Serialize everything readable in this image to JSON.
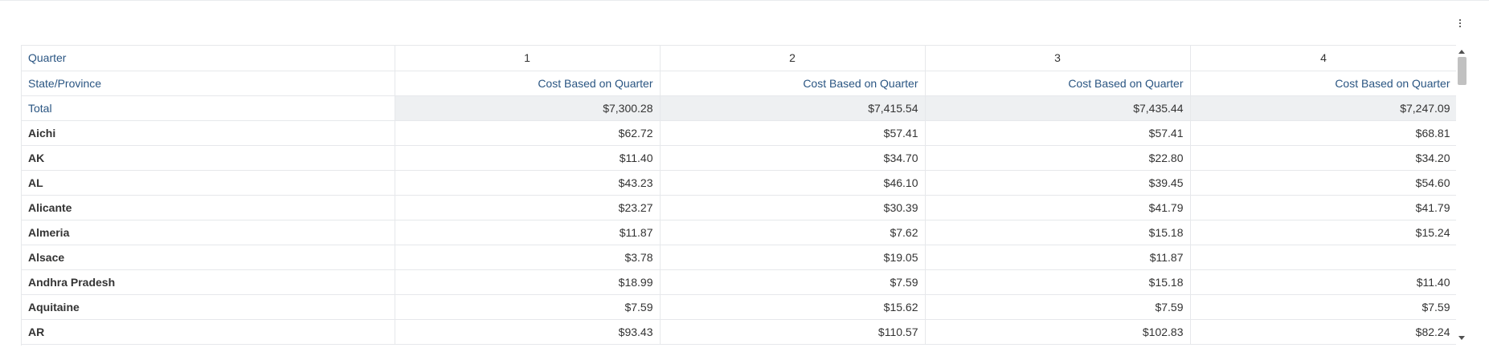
{
  "header": {
    "dimension_label": "Quarter",
    "quarters": [
      "1",
      "2",
      "3",
      "4"
    ],
    "row_dimension_label": "State/Province",
    "measure_label": "Cost Based on Quarter"
  },
  "total": {
    "label": "Total",
    "values": [
      "$7,300.28",
      "$7,415.54",
      "$7,435.44",
      "$7,247.09"
    ]
  },
  "rows": [
    {
      "label": "Aichi",
      "values": [
        "$62.72",
        "$57.41",
        "$57.41",
        "$68.81"
      ]
    },
    {
      "label": "AK",
      "values": [
        "$11.40",
        "$34.70",
        "$22.80",
        "$34.20"
      ]
    },
    {
      "label": "AL",
      "values": [
        "$43.23",
        "$46.10",
        "$39.45",
        "$54.60"
      ]
    },
    {
      "label": "Alicante",
      "values": [
        "$23.27",
        "$30.39",
        "$41.79",
        "$41.79"
      ]
    },
    {
      "label": "Almeria",
      "values": [
        "$11.87",
        "$7.62",
        "$15.18",
        "$15.24"
      ]
    },
    {
      "label": "Alsace",
      "values": [
        "$3.78",
        "$19.05",
        "$11.87",
        ""
      ]
    },
    {
      "label": "Andhra Pradesh",
      "values": [
        "$18.99",
        "$7.59",
        "$15.18",
        "$11.40"
      ]
    },
    {
      "label": "Aquitaine",
      "values": [
        "$7.59",
        "$15.62",
        "$7.59",
        "$7.59"
      ]
    },
    {
      "label": "AR",
      "values": [
        "$93.43",
        "$110.57",
        "$102.83",
        "$82.24"
      ]
    }
  ]
}
